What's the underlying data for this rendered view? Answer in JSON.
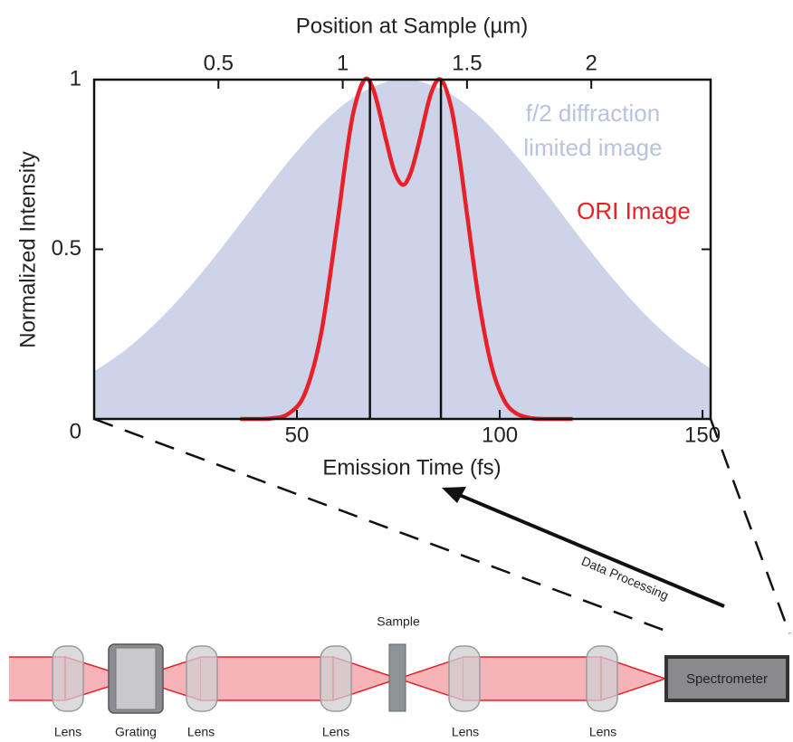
{
  "chart_data": {
    "type": "line",
    "xlabel": "Emission Time (fs)",
    "ylabel": "Normalized  Intensity",
    "x2label": "Position at Sample (µm)",
    "xlim": [
      0,
      152
    ],
    "xticks": [
      50,
      100,
      150
    ],
    "x2lim": [
      0,
      2.48
    ],
    "x2ticks": [
      0.5,
      1,
      1.5,
      2
    ],
    "ylim": [
      0,
      1
    ],
    "yticks": [
      0,
      0.5,
      1
    ],
    "vlines": [
      68,
      85.5
    ],
    "series": [
      {
        "name": "f/2 diffraction limited image",
        "color": "#cdd3e8",
        "label_color": "#b9c2df",
        "fill": true,
        "x": [
          0,
          8,
          16,
          24,
          32,
          40,
          48,
          56,
          64,
          72,
          76.6,
          80,
          88,
          96,
          104,
          112,
          120,
          128,
          136,
          144,
          152
        ],
        "values": [
          0.14,
          0.206,
          0.292,
          0.395,
          0.513,
          0.638,
          0.76,
          0.867,
          0.948,
          0.993,
          1,
          0.996,
          0.957,
          0.881,
          0.777,
          0.657,
          0.531,
          0.412,
          0.306,
          0.218,
          0.148
        ]
      },
      {
        "name": "ORI Image",
        "color": "#e8202a",
        "label_color": "#e8202a",
        "fill": false,
        "x": [
          36,
          40,
          44,
          48,
          52,
          56,
          60,
          62,
          64,
          66.7,
          69,
          72,
          74,
          76.1,
          78,
          80,
          83,
          85.5,
          88,
          90,
          92,
          95,
          98,
          101,
          104,
          108,
          112,
          118
        ],
        "values": [
          0,
          0,
          0.002,
          0.016,
          0.076,
          0.254,
          0.58,
          0.76,
          0.908,
          1,
          0.965,
          0.821,
          0.73,
          0.69,
          0.724,
          0.81,
          0.957,
          1,
          0.92,
          0.777,
          0.598,
          0.339,
          0.155,
          0.057,
          0.017,
          0.002,
          0,
          0
        ]
      }
    ]
  },
  "diagram": {
    "process": "Data Processing",
    "sample": "Sample",
    "spectrometer": "Spectrometer",
    "labels": [
      "Lens",
      "Grating",
      "Lens",
      "Lens",
      "Lens",
      "Lens"
    ]
  }
}
